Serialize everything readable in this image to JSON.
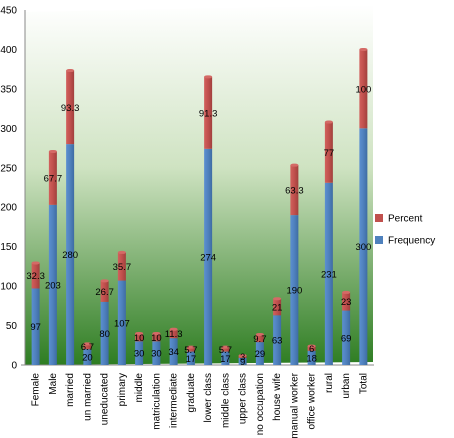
{
  "chart_data": {
    "type": "bar",
    "stacked": true,
    "categories": [
      "Female",
      "Male",
      "married",
      "un married",
      "uneducated",
      "primary",
      "middle",
      "matriculation",
      "intermediate",
      "graduate",
      "lower class",
      "middle class",
      "upper class",
      "no occupation",
      "house wife",
      "manual worker",
      "office worker",
      "rural",
      "urban",
      "Total"
    ],
    "series": [
      {
        "name": "Frequency",
        "color": "#4f81bd",
        "values": [
          97,
          203,
          280,
          20,
          80,
          107,
          30,
          30,
          34,
          17,
          274,
          17,
          9,
          29,
          63,
          190,
          18,
          231,
          69,
          300
        ],
        "labels": [
          "97",
          "203",
          "280",
          "20",
          "80",
          "107",
          "30",
          "30",
          "34",
          "17",
          "274",
          "17",
          "9",
          "29",
          "63",
          "190",
          "18",
          "231",
          "69",
          "300"
        ]
      },
      {
        "name": "Percent",
        "color": "#c0504d",
        "values": [
          32.3,
          67.7,
          93.3,
          6.7,
          26.7,
          35.7,
          10,
          10,
          11.3,
          5.7,
          91.3,
          5.7,
          3,
          9.7,
          21,
          63.3,
          6,
          77,
          23,
          100
        ],
        "labels": [
          "32.3",
          "67.7",
          "93.3",
          "6.7",
          "26.7",
          "35.7",
          "10",
          "10",
          "11.3",
          "5.7",
          "91.3",
          "5.7",
          "3",
          "9.7",
          "21",
          "63.3",
          "6",
          "77",
          "23",
          "100"
        ]
      }
    ],
    "title": "",
    "xlabel": "",
    "ylabel": "",
    "ylim": [
      0,
      450
    ],
    "yticks": [
      "0",
      "50",
      "100",
      "150",
      "200",
      "250",
      "300",
      "350",
      "400",
      "450"
    ],
    "grid": false,
    "legend": {
      "position": "right",
      "entries": [
        "Percent",
        "Frequency"
      ]
    },
    "background": {
      "gradient_top": "#ffffff",
      "gradient_bottom": "#2e7d22"
    }
  }
}
